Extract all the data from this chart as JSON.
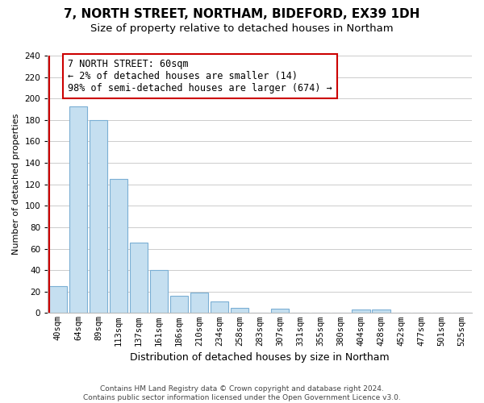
{
  "title": "7, NORTH STREET, NORTHAM, BIDEFORD, EX39 1DH",
  "subtitle": "Size of property relative to detached houses in Northam",
  "xlabel": "Distribution of detached houses by size in Northam",
  "ylabel": "Number of detached properties",
  "bar_labels": [
    "40sqm",
    "64sqm",
    "89sqm",
    "113sqm",
    "137sqm",
    "161sqm",
    "186sqm",
    "210sqm",
    "234sqm",
    "258sqm",
    "283sqm",
    "307sqm",
    "331sqm",
    "355sqm",
    "380sqm",
    "404sqm",
    "428sqm",
    "452sqm",
    "477sqm",
    "501sqm",
    "525sqm"
  ],
  "bar_values": [
    25,
    193,
    180,
    125,
    66,
    40,
    16,
    19,
    11,
    5,
    0,
    4,
    0,
    0,
    0,
    3,
    3,
    0,
    0,
    0,
    0
  ],
  "bar_facecolor": "#c5dff0",
  "bar_edgecolor": "#7bafd4",
  "vline_x_index": 0,
  "vline_color": "#cc0000",
  "annotation_text_line1": "7 NORTH STREET: 60sqm",
  "annotation_text_line2": "← 2% of detached houses are smaller (14)",
  "annotation_text_line3": "98% of semi-detached houses are larger (674) →",
  "ylim": [
    0,
    240
  ],
  "yticks": [
    0,
    20,
    40,
    60,
    80,
    100,
    120,
    140,
    160,
    180,
    200,
    220,
    240
  ],
  "grid_color": "#cccccc",
  "background_color": "#ffffff",
  "footnote_line1": "Contains HM Land Registry data © Crown copyright and database right 2024.",
  "footnote_line2": "Contains public sector information licensed under the Open Government Licence v3.0.",
  "title_fontsize": 11,
  "subtitle_fontsize": 9.5,
  "xlabel_fontsize": 9,
  "ylabel_fontsize": 8,
  "tick_fontsize": 7.5,
  "annotation_fontsize": 8.5,
  "footnote_fontsize": 6.5
}
